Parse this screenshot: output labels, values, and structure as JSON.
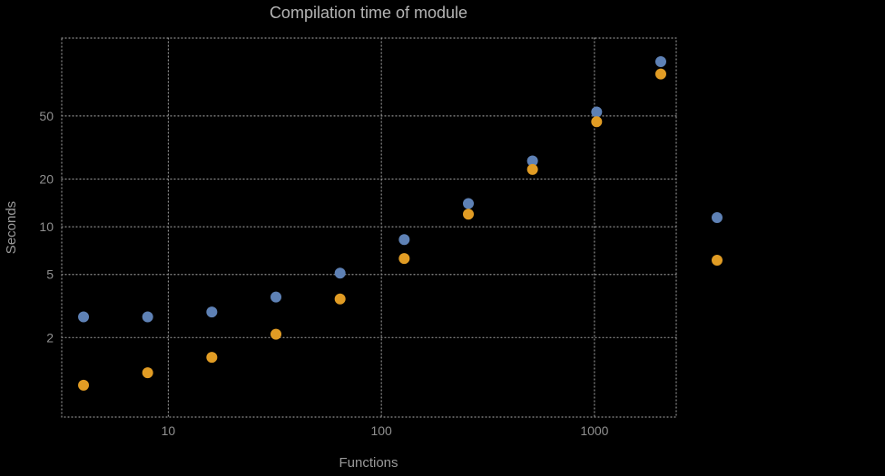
{
  "chart_data": {
    "type": "scatter",
    "title": "Compilation time of module",
    "xlabel": "Functions",
    "ylabel": "Seconds",
    "x_scale": "log",
    "y_scale": "log",
    "xlim": [
      3.16,
      2420
    ],
    "ylim": [
      0.63,
      155
    ],
    "x_ticks": [
      10,
      100,
      1000
    ],
    "y_ticks": [
      2,
      5,
      10,
      20,
      50
    ],
    "grid": true,
    "legend_position": "right",
    "x": [
      4,
      8,
      16,
      32,
      64,
      128,
      256,
      512,
      1024,
      2048
    ],
    "series": [
      {
        "name": "blue",
        "color": "#5e81b5",
        "values": [
          2.7,
          2.7,
          2.9,
          3.6,
          5.1,
          8.3,
          14,
          26,
          53,
          110
        ]
      },
      {
        "name": "orange",
        "color": "#e19c24",
        "values": [
          1.0,
          1.2,
          1.5,
          2.1,
          3.5,
          6.3,
          12,
          23,
          46,
          92
        ]
      }
    ],
    "legend_markers": [
      {
        "color": "#5e81b5"
      },
      {
        "color": "#e19c24"
      }
    ],
    "colors": {
      "background": "#000000",
      "frame": "#8f8f8f",
      "grid": "#8f8f8f",
      "title": "#b5b5b5",
      "axis_labels": "#9a9a9a",
      "tick_labels": "#8f8f8f"
    }
  }
}
